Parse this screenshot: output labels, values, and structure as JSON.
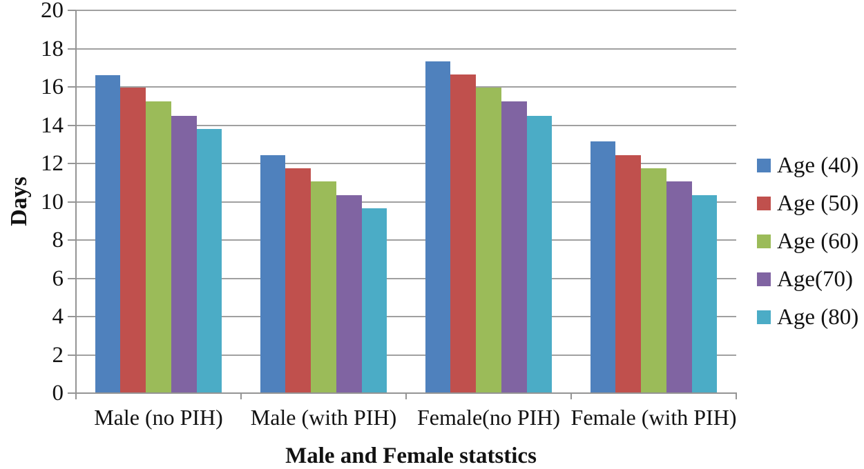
{
  "figure": {
    "background": "#ffffff",
    "text_color": "#121212",
    "axis_color": "#949494",
    "gridline_color": "#A0A0A0"
  },
  "chart_data": {
    "type": "bar",
    "title": "",
    "xlabel": "Male and Female statstics",
    "ylabel": "Days",
    "categories": [
      "Male (no PIH)",
      "Male (with PIH)",
      "Female(no PIH)",
      "Female (with PIH)"
    ],
    "series": [
      {
        "name": "Age (40)",
        "color": "#4F81BD",
        "values": [
          16.6,
          12.45,
          17.35,
          13.15
        ]
      },
      {
        "name": "Age (50)",
        "color": "#C0504D",
        "values": [
          15.95,
          11.75,
          16.65,
          12.45
        ]
      },
      {
        "name": "Age (60)",
        "color": "#9BBB59",
        "values": [
          15.25,
          11.05,
          15.95,
          11.75
        ]
      },
      {
        "name": "Age(70)",
        "color": "#8064A2",
        "values": [
          14.5,
          10.35,
          15.25,
          11.05
        ]
      },
      {
        "name": "Age (80)",
        "color": "#4BACC6",
        "values": [
          13.8,
          9.65,
          14.5,
          10.35
        ]
      }
    ],
    "ylim": [
      0,
      20
    ],
    "ytick_step": 2,
    "ytick_labels": [
      "0",
      "2",
      "4",
      "6",
      "8",
      "10",
      "12",
      "14",
      "16",
      "18",
      "20"
    ],
    "grid": true,
    "legend_position": "right",
    "gap_width_ratio": 1.5
  }
}
